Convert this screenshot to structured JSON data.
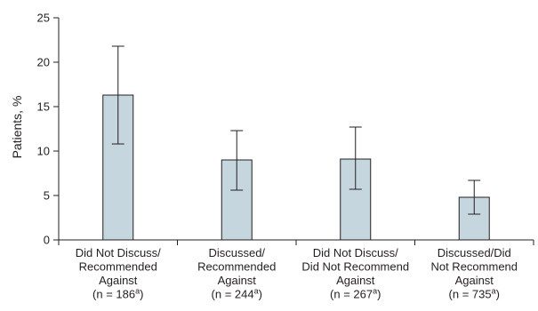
{
  "chart_data": {
    "type": "bar",
    "ylabel": "Patients, %",
    "ylim": [
      0,
      25
    ],
    "yticks": [
      0,
      5,
      10,
      15,
      20,
      25
    ],
    "grid": false,
    "bar_color": "#c5d6de",
    "categories": [
      {
        "lines": [
          "Did Not Discuss/",
          "Recommended",
          "Against"
        ],
        "n": "(n = 186",
        "sup": "a",
        "close": ")"
      },
      {
        "lines": [
          "Discussed/",
          "Recommended",
          "Against"
        ],
        "n": "(n = 244",
        "sup": "a",
        "close": ")"
      },
      {
        "lines": [
          "Did Not Discuss/",
          "Did Not Recommend",
          "Against"
        ],
        "n": "(n = 267",
        "sup": "a",
        "close": ")"
      },
      {
        "lines": [
          "Discussed/Did",
          "Not Recommend",
          "Against"
        ],
        "n": "(n = 735",
        "sup": "a",
        "close": ")"
      }
    ],
    "values": [
      16.3,
      9.0,
      9.1,
      4.8
    ],
    "error_low": [
      10.8,
      5.6,
      5.7,
      2.9
    ],
    "error_high": [
      21.8,
      12.3,
      12.7,
      6.7
    ]
  }
}
